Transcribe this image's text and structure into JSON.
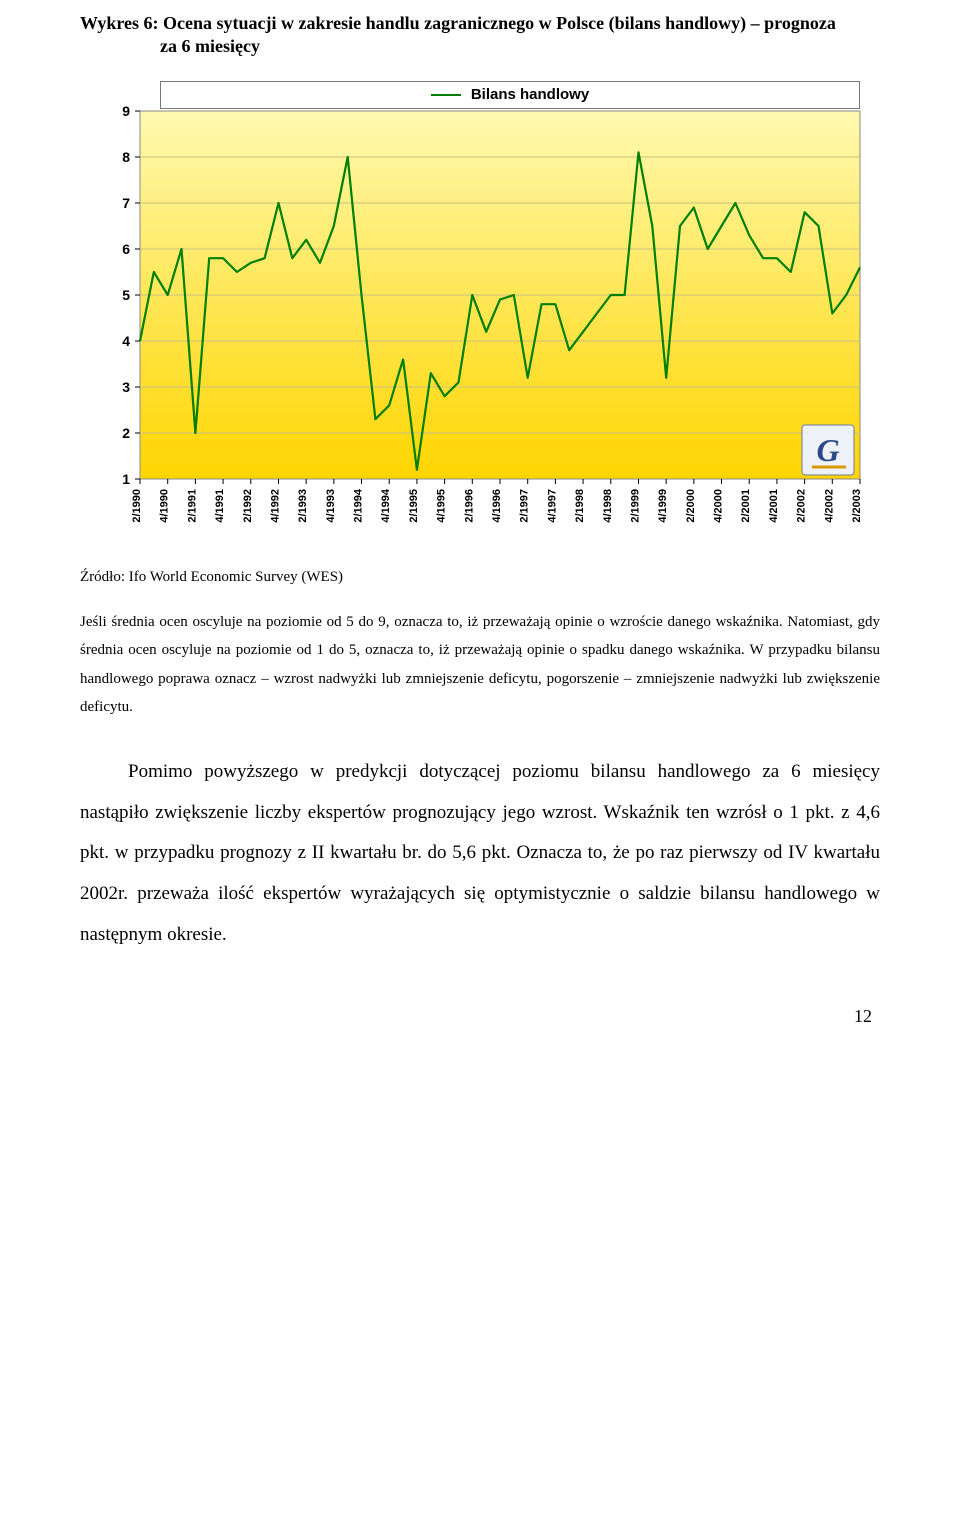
{
  "title_line1": "Wykres 6: Ocena sytuacji w zakresie handlu zagranicznego w Polsce (bilans handlowy) – prognoza",
  "title_line2": "za 6 miesięcy",
  "chart": {
    "type": "line",
    "legend_label": "Bilans handlowy",
    "line_color": "#008000",
    "line_width": 2.2,
    "ylim": [
      1,
      9
    ],
    "ytick_step": 1,
    "background_start": "#fff9b0",
    "background_end": "#ffd500",
    "grid_color": "#c9c083",
    "xlabels": [
      "2/1990",
      "4/1990",
      "2/1991",
      "4/1991",
      "2/1992",
      "4/1992",
      "2/1993",
      "4/1993",
      "2/1994",
      "4/1994",
      "2/1995",
      "4/1995",
      "2/1996",
      "4/1996",
      "2/1997",
      "4/1997",
      "2/1998",
      "4/1998",
      "2/1999",
      "4/1999",
      "2/2000",
      "4/2000",
      "2/2001",
      "4/2001",
      "2/2002",
      "4/2002",
      "2/2003"
    ],
    "values": [
      4.0,
      5.5,
      5.0,
      6.0,
      2.0,
      5.8,
      5.8,
      5.5,
      5.7,
      5.8,
      7.0,
      5.8,
      6.2,
      5.7,
      6.5,
      8.0,
      5.0,
      2.3,
      2.6,
      3.6,
      1.2,
      3.3,
      2.8,
      3.1,
      5.0,
      4.2,
      4.9,
      5.0,
      3.2,
      4.8,
      4.8,
      3.8,
      4.2,
      4.6,
      5.0,
      5.0,
      8.1,
      6.5,
      3.2,
      6.5,
      6.9,
      6.0,
      6.5,
      7.0,
      6.3,
      5.8,
      5.8,
      5.5,
      6.8,
      6.5,
      4.6,
      5.0,
      5.6
    ],
    "axis_fontfamily": "Arial",
    "axis_fontsize": 12
  },
  "source": "Źródło: Ifo World Economic Survey (WES)",
  "note": "Jeśli średnia ocen oscyluje na poziomie od 5 do 9, oznacza to, iż przeważają opinie o wzroście danego wskaźnika. Natomiast, gdy średnia ocen oscyluje na poziomie od 1 do 5, oznacza to, iż przeważają opinie o spadku danego wskaźnika. W przypadku bilansu handlowego poprawa oznacz – wzrost nadwyżki lub zmniejszenie deficytu, pogorszenie – zmniejszenie nadwyżki lub zwiększenie deficytu.",
  "body": "Pomimo powyższego w predykcji dotyczącej poziomu bilansu handlowego za 6 miesięcy nastąpiło zwiększenie liczby ekspertów prognozujący jego wzrost. Wskaźnik ten wzrósł o 1 pkt. z 4,6 pkt. w przypadku prognozy z II kwartału br. do 5,6 pkt. Oznacza to, że po raz pierwszy od IV kwartału 2002r. przeważa ilość ekspertów wyrażających się optymistycznie o saldzie bilansu handlowego w następnym okresie.",
  "page_number": "12"
}
